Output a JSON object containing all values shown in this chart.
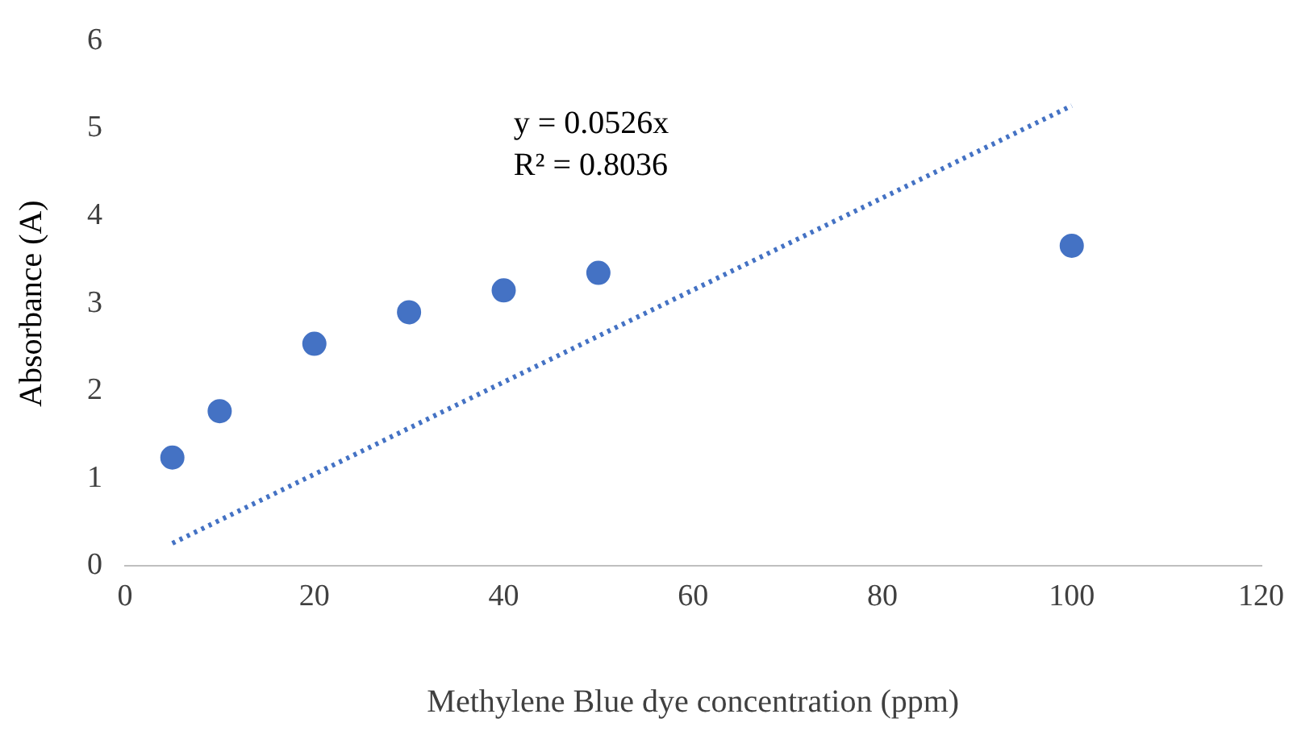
{
  "chart_data": {
    "type": "scatter",
    "xlabel": "Methylene Blue dye concentration (ppm)",
    "ylabel": "Absorbance (A)",
    "x": [
      5,
      10,
      20,
      30,
      40,
      50,
      100
    ],
    "series": [
      {
        "color": "#4472c4",
        "marker": "circle",
        "values": [
          1.24,
          1.77,
          2.54,
          2.9,
          3.15,
          3.35,
          3.66
        ]
      },
      {
        "type": "line",
        "color": "#4472c4",
        "x": [
          5,
          100
        ],
        "values": [
          0.26,
          5.26
        ],
        "line_style": "dotted",
        "marker": "none"
      }
    ],
    "xlim": [
      0,
      120
    ],
    "xticks": [
      0,
      20,
      40,
      60,
      80,
      100,
      120
    ],
    "ylim": [
      0,
      6
    ],
    "yticks": [
      0,
      1,
      2,
      3,
      4,
      5,
      6
    ],
    "grid": false,
    "legend": false,
    "annotations": [
      "y = 0.0526x",
      "R² = 0.8036"
    ]
  }
}
